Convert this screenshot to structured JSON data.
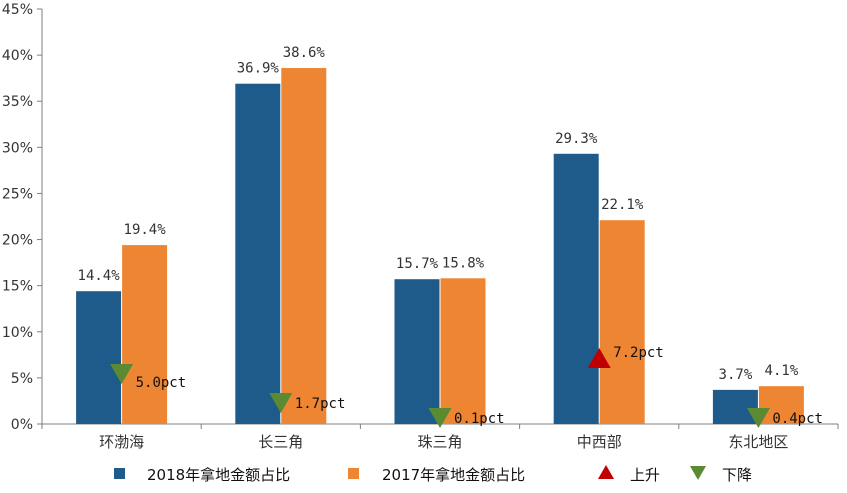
{
  "chart_data": {
    "type": "bar",
    "categories": [
      "环渤海",
      "长三角",
      "珠三角",
      "中西部",
      "东北地区"
    ],
    "series": [
      {
        "name": "2018年拿地金额占比",
        "values": [
          14.4,
          36.9,
          15.7,
          29.3,
          3.7
        ],
        "labels": [
          "14.4%",
          "36.9%",
          "15.7%",
          "29.3%",
          "3.7%"
        ],
        "color": "#1f5b8a"
      },
      {
        "name": "2017年拿地金额占比",
        "values": [
          19.4,
          38.6,
          15.8,
          22.1,
          4.1
        ],
        "labels": [
          "19.4%",
          "38.6%",
          "15.8%",
          "22.1%",
          "4.1%"
        ],
        "color": "#ee8533"
      }
    ],
    "changes": [
      {
        "direction": "down",
        "label": "5.0pct"
      },
      {
        "direction": "down",
        "label": "1.7pct"
      },
      {
        "direction": "down",
        "label": "0.1pct"
      },
      {
        "direction": "up",
        "label": "7.2pct"
      },
      {
        "direction": "down",
        "label": "0.4pct"
      }
    ],
    "markers": [
      {
        "name": "上升",
        "color": "#c00000",
        "shape": "triangle-up"
      },
      {
        "name": "下降",
        "color": "#5a8a32",
        "shape": "triangle-down"
      }
    ],
    "ylim": [
      0,
      45
    ],
    "yticks": [
      "0%",
      "5%",
      "10%",
      "15%",
      "20%",
      "25%",
      "30%",
      "35%",
      "40%",
      "45%"
    ],
    "grid": false,
    "legend_position": "bottom"
  }
}
